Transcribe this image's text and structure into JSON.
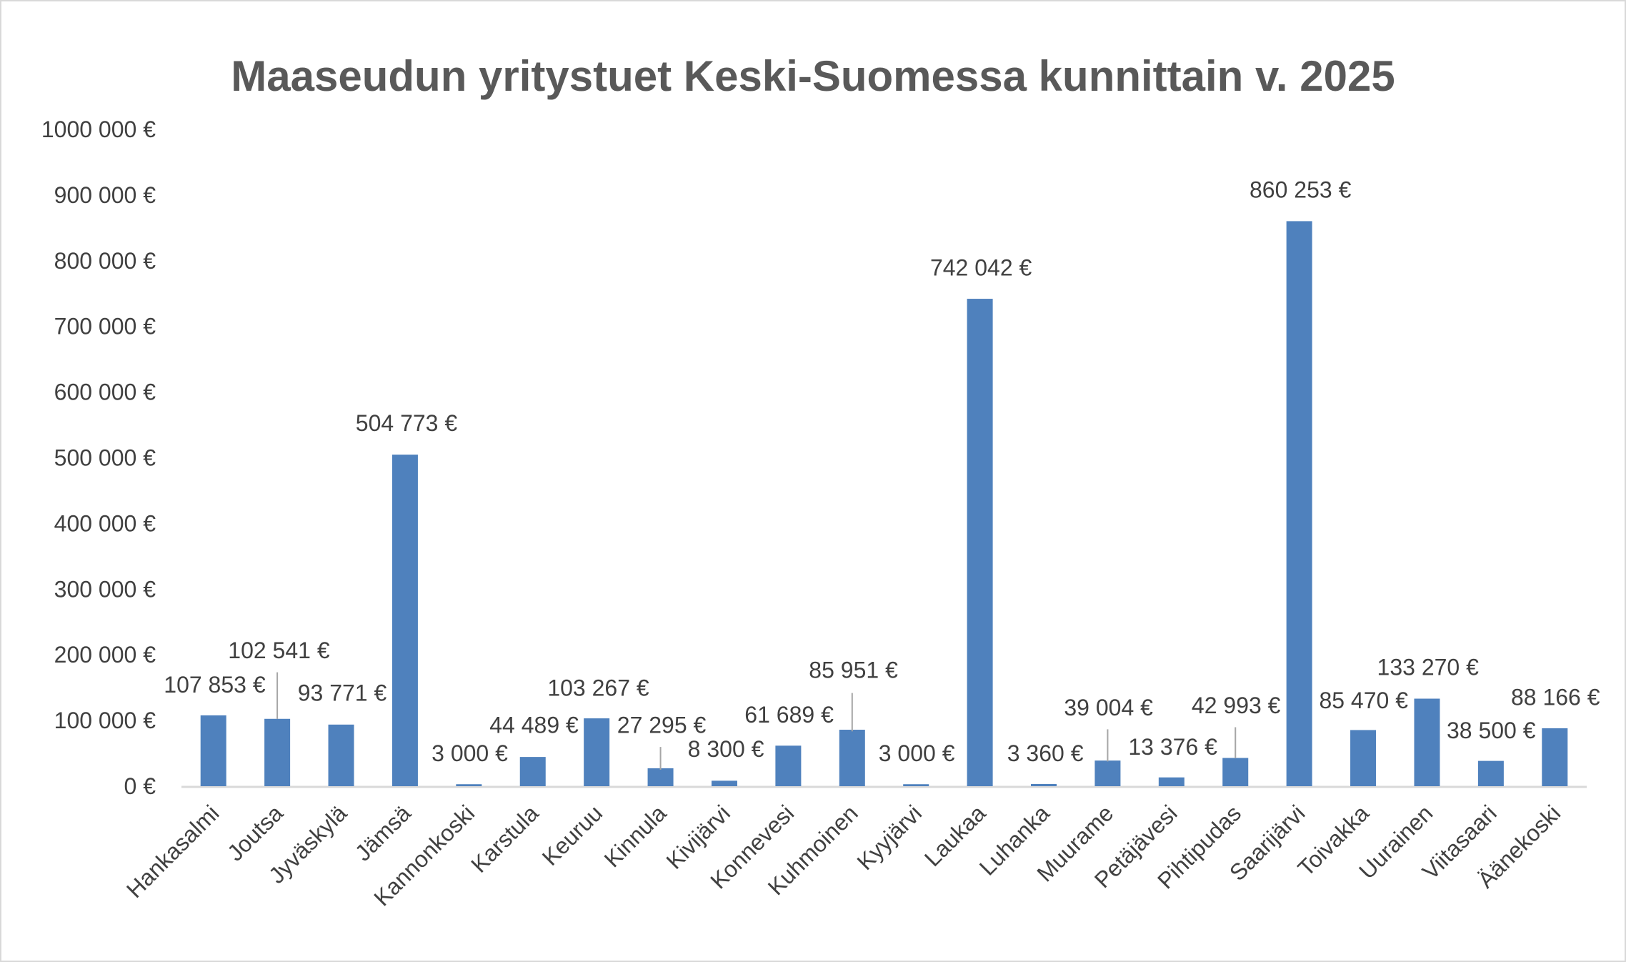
{
  "chart_data": {
    "type": "bar",
    "title": "Maaseudun yritystuet Keski-Suomessa kunnittain v. 2025",
    "xlabel": "",
    "ylabel": "",
    "ylim": [
      0,
      1000000
    ],
    "yticks": [
      0,
      100000,
      200000,
      300000,
      400000,
      500000,
      600000,
      700000,
      800000,
      900000,
      1000000
    ],
    "ytick_labels": [
      "0 €",
      "100 000 €",
      "200 000 €",
      "300 000 €",
      "400 000 €",
      "500 000 €",
      "600 000 €",
      "700 000 €",
      "800 000 €",
      "900 000 €",
      "1000 000 €"
    ],
    "grid": false,
    "legend": "none",
    "categories": [
      "Hankasalmi",
      "Joutsa",
      "Jyväskylä",
      "Jämsä",
      "Kannonkoski",
      "Karstula",
      "Keuruu",
      "Kinnula",
      "Kivijärvi",
      "Konnevesi",
      "Kuhmoinen",
      "Kyyjärvi",
      "Laukaa",
      "Luhanka",
      "Muurame",
      "Petäjävesi",
      "Pihtipudas",
      "Saarijärvi",
      "Toivakka",
      "Uurainen",
      "Viitasaari",
      "Äänekoski"
    ],
    "values": [
      107853,
      102541,
      93771,
      504773,
      3000,
      44489,
      103267,
      27295,
      8300,
      61689,
      85951,
      3000,
      742042,
      3360,
      39004,
      13376,
      42993,
      860253,
      85470,
      133270,
      38500,
      88166
    ],
    "data_labels": [
      "107 853 €",
      "102 541 €",
      "93 771 €",
      "504 773 €",
      "3 000 €",
      "44 489 €",
      "103 267 €",
      "27 295 €",
      "8 300 €",
      "61 689 €",
      "85 951 €",
      "3 000 €",
      "742 042 €",
      "3 360 €",
      "39 004 €",
      "13 376 €",
      "42 993 €",
      "860 253 €",
      "85 470 €",
      "133 270 €",
      "38 500 €",
      "88 166 €"
    ],
    "colors": {
      "bar": "#4f81bd",
      "axis": "#d9d9d9",
      "text": "#404040",
      "title": "#595959",
      "leader": "#a6a6a6"
    }
  }
}
